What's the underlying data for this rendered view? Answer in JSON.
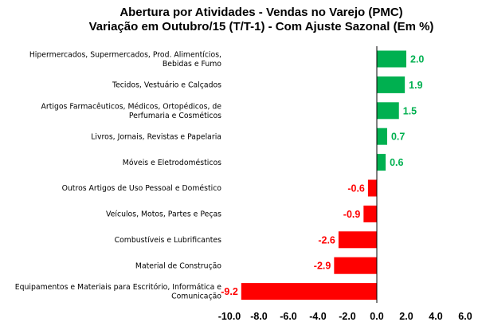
{
  "chart_data": {
    "type": "bar",
    "orientation": "horizontal",
    "title": "Abertura por Atividades - Vendas no Varejo (PMC)",
    "subtitle": "Variação em Outubro/15 (T/T-1) - Com Ajuste Sazonal (Em %)",
    "categories": [
      [
        "Hipermercados, Supermercados, Prod. Alimentícios,",
        "Bebidas e Fumo"
      ],
      [
        "Tecidos, Vestuário e Calçados"
      ],
      [
        "Artigos Farmacêuticos, Médicos, Ortopédicos, de",
        "Perfumaria e Cosméticos"
      ],
      [
        "Livros, Jornais, Revistas e Papelaria"
      ],
      [
        "Móveis e Eletrodomésticos"
      ],
      [
        "Outros Artigos de Uso Pessoal e Doméstico"
      ],
      [
        "Veículos, Motos, Partes e Peças"
      ],
      [
        "Combustíveis e Lubrificantes"
      ],
      [
        "Material de Construção"
      ],
      [
        "Equipamentos e Materiais para Escritório, Informática e",
        "Comunicação"
      ]
    ],
    "values": [
      2.0,
      1.9,
      1.5,
      0.7,
      0.6,
      -0.6,
      -0.9,
      -2.6,
      -2.9,
      -9.2
    ],
    "value_labels": [
      "2.0",
      "1.9",
      "1.5",
      "0.7",
      "0.6",
      "-0.6",
      "-0.9",
      "-2.6",
      "-2.9",
      "-9.2"
    ],
    "xlim": [
      -10.0,
      6.0
    ],
    "xticks": [
      -10.0,
      -8.0,
      -6.0,
      -4.0,
      -2.0,
      0.0,
      2.0,
      4.0,
      6.0
    ],
    "xtick_labels": [
      "-10.0",
      "-8.0",
      "-6.0",
      "-4.0",
      "-2.0",
      "0.0",
      "2.0",
      "4.0",
      "6.0"
    ],
    "grid": false,
    "legend": "none",
    "colors": {
      "positive": "#00b050",
      "negative": "#ff0000",
      "axis": "#000000"
    }
  }
}
